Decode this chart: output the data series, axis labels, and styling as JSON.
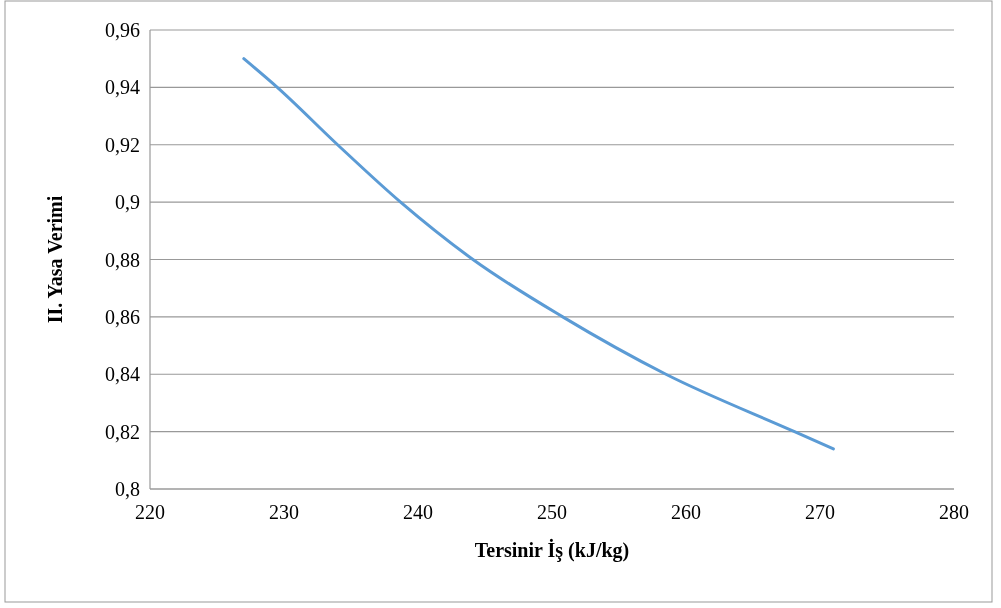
{
  "chart_data": {
    "type": "line",
    "xlabel": "Tersinir İş (kJ/kg)",
    "ylabel": "II. Yasa Verimi",
    "x": [
      227,
      229.5,
      234,
      238.7,
      244.1,
      250.8,
      258.5,
      268.1,
      271
    ],
    "series": [
      {
        "color": "#5b9bd5",
        "values": [
          0.95,
          0.94,
          0.92,
          0.9,
          0.88,
          0.86,
          0.84,
          0.82,
          0.814
        ]
      }
    ],
    "xlim": [
      220,
      280
    ],
    "xticks": [
      220,
      230,
      240,
      250,
      260,
      270,
      280
    ],
    "ylim": [
      0.8,
      0.96
    ],
    "yticks": [
      {
        "value": 0.8,
        "label": "0,8"
      },
      {
        "value": 0.82,
        "label": "0,82"
      },
      {
        "value": 0.84,
        "label": "0,84"
      },
      {
        "value": 0.86,
        "label": "0,86"
      },
      {
        "value": 0.88,
        "label": "0,88"
      },
      {
        "value": 0.9,
        "label": "0,9"
      },
      {
        "value": 0.92,
        "label": "0,92"
      },
      {
        "value": 0.94,
        "label": "0,94"
      },
      {
        "value": 0.96,
        "label": "0,96"
      }
    ],
    "grid": "y"
  }
}
